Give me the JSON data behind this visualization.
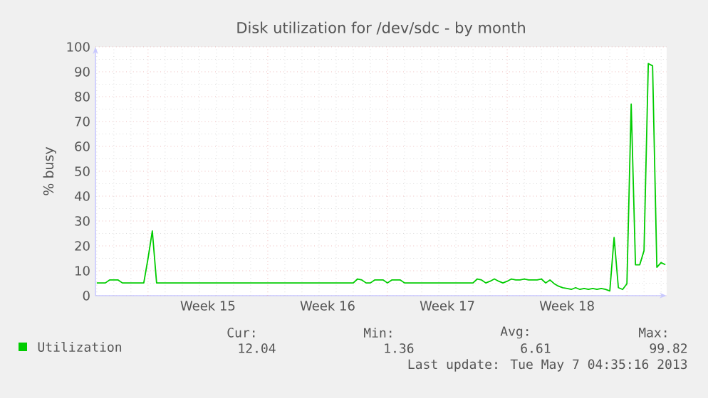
{
  "chart_data": {
    "type": "line",
    "title": "Disk utilization for /dev/sdc - by month",
    "ylabel": "% busy",
    "categories": [
      null,
      null,
      null,
      null,
      null,
      null,
      null,
      null,
      null,
      null,
      null,
      null,
      null,
      null,
      null,
      null,
      null,
      null,
      null,
      null,
      null,
      null,
      null,
      null,
      null,
      null,
      "Week 15",
      null,
      null,
      null,
      null,
      null,
      null,
      null,
      null,
      null,
      null,
      null,
      null,
      null,
      null,
      null,
      null,
      null,
      null,
      null,
      null,
      null,
      null,
      null,
      null,
      null,
      null,
      null,
      "Week 16",
      null,
      null,
      null,
      null,
      null,
      null,
      null,
      null,
      null,
      null,
      null,
      null,
      null,
      null,
      null,
      null,
      null,
      null,
      null,
      null,
      null,
      null,
      null,
      null,
      null,
      null,
      null,
      "Week 17",
      null,
      null,
      null,
      null,
      null,
      null,
      null,
      null,
      null,
      null,
      null,
      null,
      null,
      null,
      null,
      null,
      null,
      null,
      null,
      null,
      null,
      null,
      null,
      null,
      null,
      null,
      null,
      "Week 18",
      null,
      null,
      null,
      null,
      null,
      null,
      null,
      null,
      null,
      null,
      null,
      null,
      null,
      null,
      null,
      null,
      null,
      null,
      null,
      null,
      null,
      null,
      null
    ],
    "series": [
      {
        "name": "Utilization",
        "color": "#00cc00",
        "values": [
          5.1,
          5.1,
          5.1,
          6.3,
          6.3,
          6.3,
          5.1,
          5.1,
          5.1,
          5.1,
          5.1,
          5.1,
          15,
          26,
          5.1,
          5.1,
          5.1,
          5.1,
          5.1,
          5.1,
          5.1,
          5.1,
          5.1,
          5.1,
          5.1,
          5.1,
          5.1,
          5.1,
          5.1,
          5.1,
          5.1,
          5.1,
          5.1,
          5.1,
          5.1,
          5.1,
          5.1,
          5.1,
          5.1,
          5.1,
          5.1,
          5.1,
          5.1,
          5.1,
          5.1,
          5.1,
          5.1,
          5.1,
          5.1,
          5.1,
          5.1,
          5.1,
          5.1,
          5.1,
          5.1,
          5.1,
          5.1,
          5.1,
          5.1,
          5.1,
          5.1,
          6.7,
          6.3,
          5.1,
          5.1,
          6.3,
          6.3,
          6.3,
          5.1,
          6.3,
          6.3,
          6.3,
          5.1,
          5.1,
          5.1,
          5.1,
          5.1,
          5.1,
          5.1,
          5.1,
          5.1,
          5.1,
          5.1,
          5.1,
          5.1,
          5.1,
          5.1,
          5.1,
          5.1,
          6.7,
          6.3,
          5.1,
          5.8,
          6.7,
          5.8,
          5.1,
          5.8,
          6.7,
          6.3,
          6.3,
          6.7,
          6.3,
          6.3,
          6.3,
          6.7,
          5.1,
          6.3,
          4.8,
          3.8,
          3.2,
          2.9,
          2.5,
          3.2,
          2.5,
          2.9,
          2.5,
          2.9,
          2.5,
          2.9,
          2.5,
          1.9,
          23.4,
          3.2,
          2.5,
          4.8,
          77,
          12.4,
          12.4,
          18.1,
          93.3,
          92.4,
          11.4,
          13.3,
          12.4
        ]
      }
    ],
    "ylim": [
      0,
      100
    ],
    "yticks": [
      0,
      10,
      20,
      30,
      40,
      50,
      60,
      70,
      80,
      90,
      100
    ],
    "grid": true,
    "legend": "bottom left",
    "annotations": [
      "Cur:",
      "Min:",
      "Avg:",
      "Max:",
      "12.04",
      "1.36",
      "6.61",
      "99.82",
      "Last update: Tue May  7 04:35:16 2013"
    ]
  }
}
